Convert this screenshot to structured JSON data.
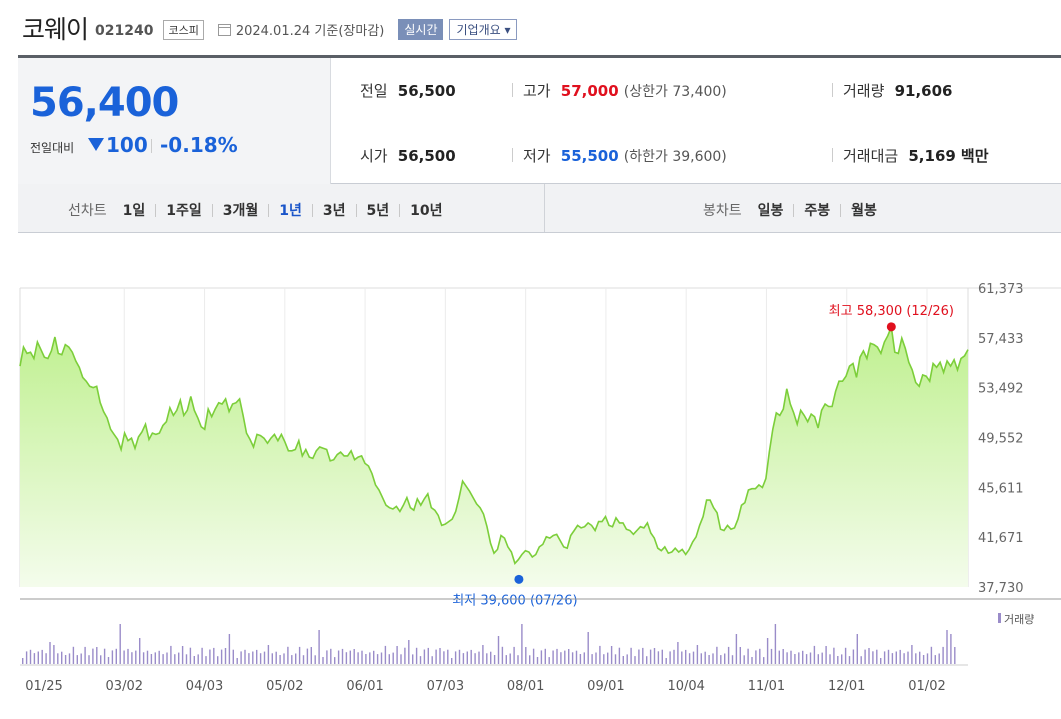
{
  "header": {
    "company": "코웨이",
    "code": "021240",
    "market_badge": "코스피",
    "date_note": "2024.01.24 기준(장마감)",
    "realtime_badge": "실시간",
    "info_badge": "기업개요 ▾"
  },
  "summary": {
    "current_price": "56,400",
    "change_label": "전일대비",
    "change_value": "100",
    "change_pct": "-0.18%",
    "prev_close_label": "전일",
    "prev_close": "56,500",
    "open_label": "시가",
    "open": "56,500",
    "high_label": "고가",
    "high": "57,000",
    "upper_limit": "(상한가 73,400)",
    "low_label": "저가",
    "low": "55,500",
    "lower_limit": "(하한가 39,600)",
    "volume_label": "거래량",
    "volume": "91,606",
    "amount_label": "거래대금",
    "amount": "5,169",
    "amount_unit": "백만"
  },
  "period_bar": {
    "line_label": "선차트",
    "line_items": [
      "1일",
      "1주일",
      "3개월",
      "1년",
      "3년",
      "5년",
      "10년"
    ],
    "selected": "1년",
    "candle_label": "봉차트",
    "candle_items": [
      "일봉",
      "주봉",
      "월봉"
    ]
  },
  "colors": {
    "price_up": "#e0101e",
    "price_down": "#1a62d9",
    "line": "#7cce3a",
    "area_top": "#bff08f",
    "area_bottom": "#f4fcec",
    "volume_bar": "#9a8cc9"
  },
  "chart_data": {
    "type": "area",
    "y_ticks": [
      "61,373",
      "57,433",
      "53,492",
      "49,552",
      "45,611",
      "41,671",
      "37,730"
    ],
    "ylim": [
      37730,
      61373
    ],
    "x_ticks": [
      "01/25",
      "03/02",
      "04/03",
      "05/02",
      "06/01",
      "07/03",
      "08/01",
      "09/01",
      "10/04",
      "11/01",
      "12/01",
      "01/02"
    ],
    "max_annotation": "최고 58,300 (12/26)",
    "min_annotation": "최저 39,600 (07/26)",
    "volume_legend": "거래량",
    "price_series": [
      55200,
      56700,
      56200,
      56300,
      55800,
      57100,
      56500,
      55900,
      55800,
      56400,
      57500,
      56200,
      56100,
      56900,
      56700,
      56300,
      55600,
      55100,
      54300,
      54000,
      53600,
      53500,
      53600,
      52300,
      51600,
      51100,
      50200,
      49800,
      49400,
      48600,
      49900,
      49300,
      49500,
      48700,
      49600,
      50000,
      50600,
      49400,
      49900,
      49800,
      49900,
      50500,
      50800,
      51900,
      51300,
      51700,
      52500,
      51300,
      51700,
      52800,
      51700,
      51100,
      50400,
      50200,
      51800,
      51200,
      51800,
      52300,
      52200,
      52600,
      51600,
      52200,
      52300,
      52600,
      51300,
      49900,
      49400,
      48800,
      49800,
      49700,
      49500,
      49100,
      49500,
      49800,
      49300,
      49800,
      49200,
      48500,
      48500,
      48600,
      49300,
      48100,
      48600,
      48000,
      47900,
      48500,
      48800,
      48700,
      48600,
      47700,
      47800,
      48200,
      48400,
      48100,
      48100,
      48500,
      47800,
      48000,
      48100,
      47500,
      47300,
      46700,
      45800,
      45400,
      44800,
      44200,
      44000,
      43900,
      44100,
      43700,
      44200,
      44800,
      44000,
      43800,
      44700,
      44200,
      44700,
      45100,
      44000,
      43800,
      43400,
      42600,
      42700,
      42900,
      43100,
      43700,
      44800,
      46100,
      45700,
      45300,
      44800,
      44300,
      44000,
      43500,
      42500,
      41200,
      40400,
      40700,
      41800,
      41600,
      40900,
      40500,
      39600,
      39900,
      40300,
      40600,
      40500,
      40100,
      40300,
      40900,
      41100,
      41700,
      41600,
      41800,
      41900,
      41400,
      40900,
      40800,
      41800,
      42200,
      42600,
      42400,
      42500,
      42800,
      42600,
      42200,
      42900,
      42900,
      43300,
      42600,
      42500,
      43200,
      42800,
      42800,
      42300,
      42200,
      41900,
      42200,
      42500,
      42400,
      42800,
      42000,
      41600,
      40800,
      40600,
      40900,
      40400,
      40500,
      40800,
      40500,
      40700,
      40300,
      40700,
      41300,
      41700,
      42600,
      43300,
      44600,
      44600,
      44000,
      43600,
      42300,
      42200,
      42600,
      42300,
      42400,
      43100,
      44200,
      44400,
      45400,
      45500,
      45500,
      45800,
      45600,
      46300,
      48400,
      50200,
      51500,
      51300,
      51800,
      53400,
      52200,
      51500,
      50600,
      51700,
      51300,
      50800,
      51400,
      51200,
      50300,
      51700,
      52200,
      52000,
      52000,
      53200,
      54000,
      54000,
      54400,
      55200,
      55400,
      54300,
      55900,
      56400,
      55800,
      57000,
      56900,
      56700,
      56200,
      57100,
      57600,
      58300,
      56300,
      56200,
      57400,
      56600,
      55500,
      54900,
      53900,
      53600,
      54500,
      54400,
      54000,
      55400,
      55100,
      55500,
      54700,
      55600,
      55200,
      55700,
      54900,
      55800,
      56000,
      56500
    ]
  }
}
